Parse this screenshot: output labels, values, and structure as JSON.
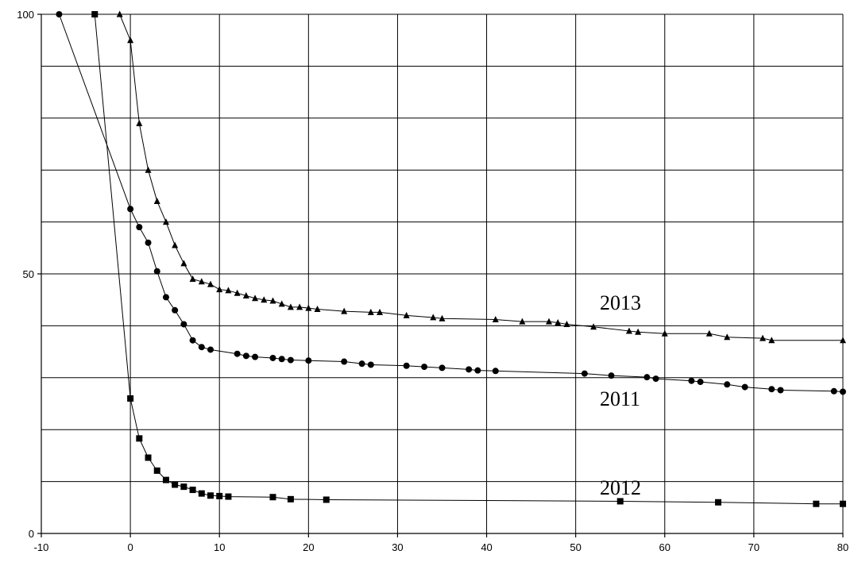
{
  "chart_data": {
    "type": "line",
    "title": "",
    "xlabel": "",
    "ylabel": "",
    "xlim": [
      -10,
      80
    ],
    "ylim": [
      0,
      100
    ],
    "x_ticks": [
      "-10",
      "0",
      "10",
      "20",
      "30",
      "40",
      "50",
      "60",
      "70",
      "80"
    ],
    "y_tick_labels": [
      "0",
      "50",
      "100"
    ],
    "y_gridlines": [
      0,
      10,
      20,
      30,
      40,
      50,
      60,
      70,
      80,
      90,
      100
    ],
    "grid": true,
    "legend": "none",
    "series": [
      {
        "name": "2013",
        "marker": "triangle",
        "points": [
          [
            -1.2,
            100
          ],
          [
            0,
            95
          ],
          [
            1,
            79
          ],
          [
            2,
            70
          ],
          [
            3,
            64
          ],
          [
            4,
            60
          ],
          [
            5,
            55.5
          ],
          [
            6,
            52
          ],
          [
            7,
            49
          ],
          [
            8,
            48.5
          ],
          [
            9,
            48
          ],
          [
            10,
            47
          ],
          [
            11,
            46.8
          ],
          [
            12,
            46.3
          ],
          [
            13,
            45.8
          ],
          [
            14,
            45.3
          ],
          [
            15,
            45
          ],
          [
            16,
            44.8
          ],
          [
            17,
            44.2
          ],
          [
            18,
            43.6
          ],
          [
            19,
            43.6
          ],
          [
            20,
            43.4
          ],
          [
            21,
            43.2
          ],
          [
            24,
            42.8
          ],
          [
            27,
            42.6
          ],
          [
            28,
            42.6
          ],
          [
            31,
            42
          ],
          [
            34,
            41.6
          ],
          [
            35,
            41.4
          ],
          [
            41,
            41.2
          ],
          [
            44,
            40.8
          ],
          [
            47,
            40.8
          ],
          [
            48,
            40.6
          ],
          [
            49,
            40.3
          ],
          [
            52,
            39.8
          ],
          [
            56,
            39
          ],
          [
            57,
            38.8
          ],
          [
            60,
            38.5
          ],
          [
            65,
            38.5
          ],
          [
            67,
            37.8
          ],
          [
            71,
            37.6
          ],
          [
            72,
            37.2
          ],
          [
            80,
            37.2
          ]
        ]
      },
      {
        "name": "2011",
        "marker": "circle",
        "points": [
          [
            -8,
            100
          ],
          [
            0,
            62.5
          ],
          [
            1,
            59
          ],
          [
            2,
            56
          ],
          [
            3,
            50.5
          ],
          [
            4,
            45.5
          ],
          [
            5,
            43
          ],
          [
            6,
            40.3
          ],
          [
            7,
            37.2
          ],
          [
            8,
            35.9
          ],
          [
            9,
            35.4
          ],
          [
            12,
            34.6
          ],
          [
            13,
            34.2
          ],
          [
            14,
            34
          ],
          [
            16,
            33.8
          ],
          [
            17,
            33.6
          ],
          [
            18,
            33.4
          ],
          [
            20,
            33.3
          ],
          [
            24,
            33.1
          ],
          [
            26,
            32.7
          ],
          [
            27,
            32.5
          ],
          [
            31,
            32.3
          ],
          [
            33,
            32.1
          ],
          [
            35,
            31.9
          ],
          [
            38,
            31.6
          ],
          [
            39,
            31.4
          ],
          [
            41,
            31.3
          ],
          [
            51,
            30.8
          ],
          [
            54,
            30.4
          ],
          [
            58,
            30.1
          ],
          [
            59,
            29.8
          ],
          [
            63,
            29.4
          ],
          [
            64,
            29.2
          ],
          [
            67,
            28.7
          ],
          [
            69,
            28.2
          ],
          [
            72,
            27.8
          ],
          [
            73,
            27.6
          ],
          [
            79,
            27.4
          ],
          [
            80,
            27.3
          ]
        ]
      },
      {
        "name": "2012",
        "marker": "square",
        "points": [
          [
            -4,
            100
          ],
          [
            0,
            26
          ],
          [
            1,
            18.3
          ],
          [
            2,
            14.6
          ],
          [
            3,
            12.1
          ],
          [
            4,
            10.3
          ],
          [
            5,
            9.4
          ],
          [
            6,
            9
          ],
          [
            7,
            8.4
          ],
          [
            8,
            7.7
          ],
          [
            9,
            7.3
          ],
          [
            10,
            7.2
          ],
          [
            11,
            7.1
          ],
          [
            16,
            7
          ],
          [
            18,
            6.6
          ],
          [
            22,
            6.5
          ],
          [
            55,
            6.2
          ],
          [
            66,
            6
          ],
          [
            77,
            5.7
          ],
          [
            80,
            5.7
          ]
        ]
      }
    ],
    "annotations": [
      "2013",
      "2011",
      "2012"
    ]
  }
}
